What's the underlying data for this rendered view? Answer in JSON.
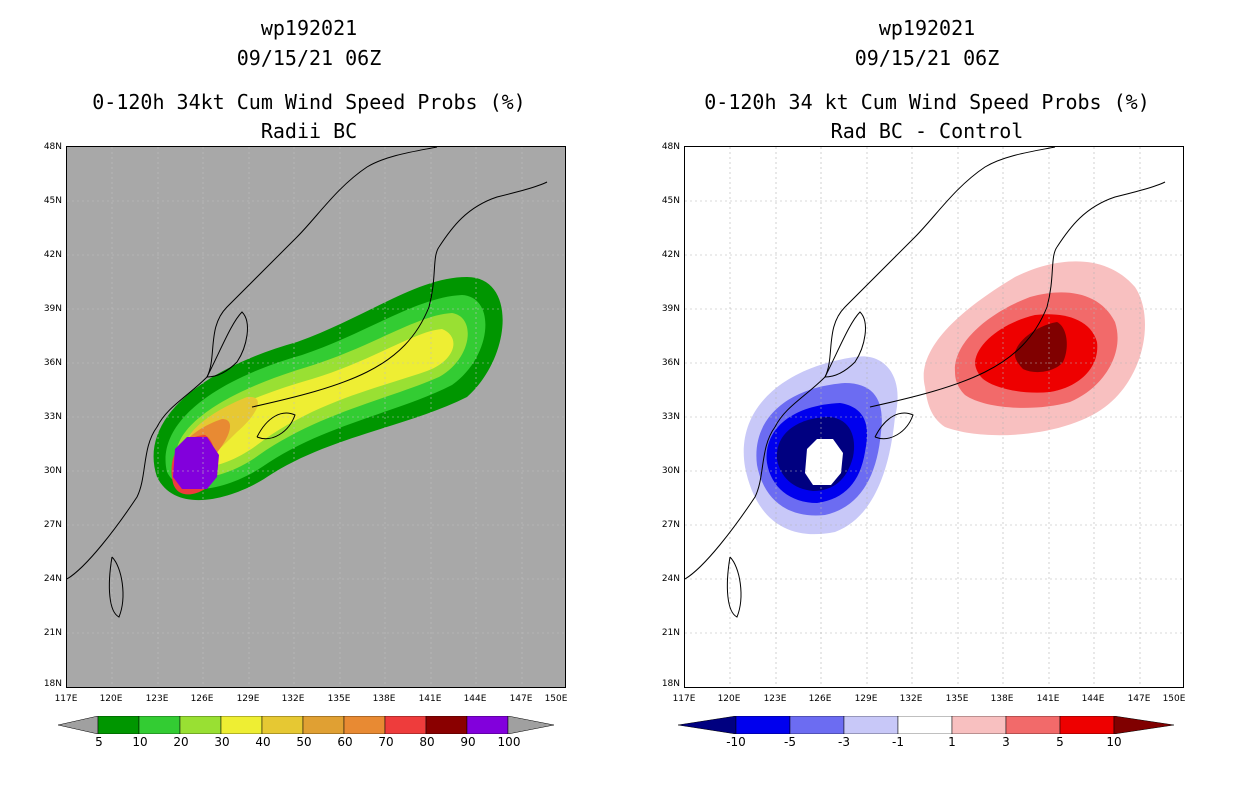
{
  "left_panel": {
    "storm_id": "wp192021",
    "datetime": "09/15/21 06Z",
    "title": "0-120h 34kt Cum Wind Speed Probs (%)",
    "subtitle": "Radii BC",
    "colorbar": {
      "labels": [
        "5",
        "10",
        "20",
        "30",
        "40",
        "50",
        "60",
        "70",
        "80",
        "90",
        "100"
      ],
      "colors": [
        "#a0a0a0",
        "#009600",
        "#33cc33",
        "#99e033",
        "#eeee33",
        "#e6c833",
        "#e0a033",
        "#e88a33",
        "#ee3c3c",
        "#8a0000",
        "#8200dc",
        "#a0a0a0"
      ]
    }
  },
  "right_panel": {
    "storm_id": "wp192021",
    "datetime": "09/15/21 06Z",
    "title": "0-120h 34 kt Cum Wind Speed Probs (%)",
    "subtitle": "Rad BC - Control",
    "colorbar": {
      "labels": [
        "-10",
        "-5",
        "-3",
        "-1",
        "1",
        "3",
        "5",
        "10"
      ],
      "colors": [
        "#000080",
        "#0000ee",
        "#6c6cf2",
        "#c8c8f8",
        "#ffffff",
        "#f8c0c0",
        "#f26a6a",
        "#ee0000",
        "#800000"
      ]
    }
  },
  "axes": {
    "lat_labels": [
      "48N",
      "45N",
      "42N",
      "39N",
      "36N",
      "33N",
      "30N",
      "27N",
      "24N",
      "21N",
      "18N"
    ],
    "lon_labels": [
      "117E",
      "120E",
      "123E",
      "126E",
      "129E",
      "132E",
      "135E",
      "138E",
      "141E",
      "144E",
      "147E",
      "150E"
    ],
    "lat_range": [
      18,
      48
    ],
    "lon_range": [
      117,
      150
    ]
  },
  "colors": {
    "map_background_left": "#a8a8a8",
    "map_background_right": "#ffffff",
    "coastline": "#000000",
    "grid": "#b4b4b4"
  }
}
